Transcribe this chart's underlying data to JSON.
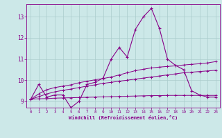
{
  "xlabel": "Windchill (Refroidissement éolien,°C)",
  "x": [
    0,
    1,
    2,
    3,
    4,
    5,
    6,
    7,
    8,
    9,
    10,
    11,
    12,
    13,
    14,
    15,
    16,
    17,
    18,
    19,
    20,
    21,
    22,
    23
  ],
  "y_main": [
    9.1,
    9.8,
    9.2,
    9.3,
    9.3,
    8.7,
    9.0,
    9.8,
    9.9,
    10.1,
    11.0,
    11.55,
    11.1,
    12.4,
    13.0,
    13.4,
    12.45,
    11.0,
    10.7,
    10.5,
    9.5,
    9.3,
    9.2,
    9.2
  ],
  "y_line1": [
    9.1,
    9.35,
    9.55,
    9.65,
    9.72,
    9.78,
    9.88,
    9.95,
    10.02,
    10.08,
    10.15,
    10.25,
    10.35,
    10.45,
    10.52,
    10.58,
    10.62,
    10.65,
    10.68,
    10.72,
    10.75,
    10.78,
    10.82,
    10.88
  ],
  "y_line2": [
    9.1,
    9.22,
    9.35,
    9.45,
    9.52,
    9.58,
    9.65,
    9.72,
    9.78,
    9.85,
    9.9,
    9.95,
    10.0,
    10.05,
    10.1,
    10.15,
    10.2,
    10.25,
    10.3,
    10.35,
    10.38,
    10.41,
    10.44,
    10.47
  ],
  "y_flat": [
    9.1,
    9.12,
    9.13,
    9.15,
    9.16,
    9.17,
    9.18,
    9.19,
    9.2,
    9.21,
    9.22,
    9.23,
    9.24,
    9.25,
    9.26,
    9.27,
    9.27,
    9.28,
    9.28,
    9.28,
    9.28,
    9.28,
    9.28,
    9.28
  ],
  "ylim_min": 8.7,
  "ylim_max": 13.6,
  "yticks": [
    9,
    10,
    11,
    12,
    13
  ],
  "xticks": [
    0,
    1,
    2,
    3,
    4,
    5,
    6,
    7,
    8,
    9,
    10,
    11,
    12,
    13,
    14,
    15,
    16,
    17,
    18,
    19,
    20,
    21,
    22,
    23
  ],
  "bg_color": "#cce8e8",
  "grid_color": "#aacccc",
  "line_color": "#880088",
  "marker": "+"
}
